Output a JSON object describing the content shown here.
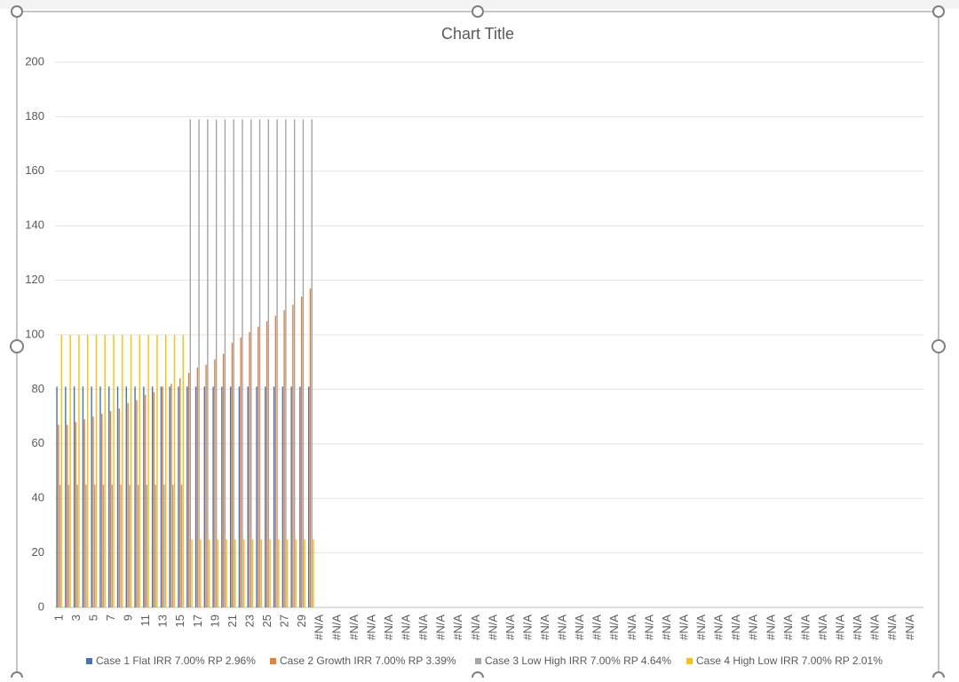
{
  "chart_data": {
    "type": "bar",
    "title": "Chart Title",
    "categories": [
      "1",
      null,
      "3",
      null,
      "5",
      null,
      "7",
      null,
      "9",
      null,
      "11",
      null,
      "13",
      null,
      "15",
      null,
      "17",
      null,
      "19",
      null,
      "21",
      null,
      "23",
      null,
      "25",
      null,
      "27",
      null,
      "29",
      null,
      "#N/A",
      null,
      "#N/A",
      null,
      "#N/A",
      null,
      "#N/A",
      null,
      "#N/A",
      null,
      "#N/A",
      null,
      "#N/A",
      null,
      "#N/A",
      null,
      "#N/A",
      null,
      "#N/A",
      null,
      "#N/A",
      null,
      "#N/A",
      null,
      "#N/A",
      null,
      "#N/A",
      null,
      "#N/A",
      null,
      "#N/A",
      null,
      "#N/A",
      null,
      "#N/A",
      null,
      "#N/A",
      null,
      "#N/A",
      null,
      "#N/A",
      null,
      "#N/A",
      null,
      "#N/A",
      null,
      "#N/A",
      null,
      "#N/A",
      null,
      "#N/A",
      null,
      "#N/A",
      null,
      "#N/A",
      null,
      "#N/A",
      null,
      "#N/A",
      null,
      "#N/A",
      null,
      "#N/A",
      null,
      "#N/A",
      null,
      "#N/A",
      null,
      "#N/A",
      null
    ],
    "series": [
      {
        "name": "Case 1 Flat IRR 7.00% RP 2.96%",
        "color": "#4472c4",
        "values": [
          81,
          81,
          81,
          81,
          81,
          81,
          81,
          81,
          81,
          81,
          81,
          81,
          81,
          81,
          81,
          81,
          81,
          81,
          81,
          81,
          81,
          81,
          81,
          81,
          81,
          81,
          81,
          81,
          81,
          81,
          null,
          null,
          null,
          null,
          null,
          null,
          null,
          null,
          null,
          null,
          null,
          null,
          null,
          null,
          null,
          null,
          null,
          null,
          null,
          null,
          null,
          null,
          null,
          null,
          null,
          null,
          null,
          null,
          null,
          null,
          null,
          null,
          null,
          null,
          null,
          null,
          null,
          null,
          null,
          null,
          null,
          null,
          null,
          null,
          null,
          null,
          null,
          null,
          null,
          null,
          null,
          null,
          null,
          null,
          null,
          null,
          null,
          null,
          null,
          null,
          null,
          null,
          null,
          null,
          null,
          null,
          null,
          null,
          null,
          null
        ]
      },
      {
        "name": "Case 2 Growth IRR 7.00% RP 3.39%",
        "color": "#ed7d31",
        "values": [
          67,
          67,
          68,
          69,
          70,
          71,
          72,
          73,
          75,
          76,
          78,
          79,
          81,
          82,
          84,
          86,
          88,
          89,
          91,
          93,
          97,
          99,
          101,
          103,
          105,
          107,
          109,
          111,
          114,
          117,
          null,
          null,
          null,
          null,
          null,
          null,
          null,
          null,
          null,
          null,
          null,
          null,
          null,
          null,
          null,
          null,
          null,
          null,
          null,
          null,
          null,
          null,
          null,
          null,
          null,
          null,
          null,
          null,
          null,
          null,
          null,
          null,
          null,
          null,
          null,
          null,
          null,
          null,
          null,
          null,
          null,
          null,
          null,
          null,
          null,
          null,
          null,
          null,
          null,
          null,
          null,
          null,
          null,
          null,
          null,
          null,
          null,
          null,
          null,
          null,
          null,
          null,
          null,
          null,
          null,
          null,
          null,
          null,
          null,
          null
        ]
      },
      {
        "name": "Case 3 Low High IRR 7.00% RP 4.64%",
        "color": "#a5a5a5",
        "values": [
          45,
          45,
          45,
          45,
          45,
          45,
          45,
          45,
          45,
          45,
          45,
          45,
          45,
          45,
          45,
          179,
          179,
          179,
          179,
          179,
          179,
          179,
          179,
          179,
          179,
          179,
          179,
          179,
          179,
          179,
          null,
          null,
          null,
          null,
          null,
          null,
          null,
          null,
          null,
          null,
          null,
          null,
          null,
          null,
          null,
          null,
          null,
          null,
          null,
          null,
          null,
          null,
          null,
          null,
          null,
          null,
          null,
          null,
          null,
          null,
          null,
          null,
          null,
          null,
          null,
          null,
          null,
          null,
          null,
          null,
          null,
          null,
          null,
          null,
          null,
          null,
          null,
          null,
          null,
          null,
          null,
          null,
          null,
          null,
          null,
          null,
          null,
          null,
          null,
          null,
          null,
          null,
          null,
          null,
          null,
          null,
          null,
          null,
          null,
          null
        ]
      },
      {
        "name": "Case 4 High Low IRR 7.00% RP 2.01%",
        "color": "#ffc000",
        "values": [
          100,
          100,
          100,
          100,
          100,
          100,
          100,
          100,
          100,
          100,
          100,
          100,
          100,
          100,
          100,
          25,
          25,
          25,
          25,
          25,
          25,
          25,
          25,
          25,
          25,
          25,
          25,
          25,
          25,
          25,
          null,
          null,
          null,
          null,
          null,
          null,
          null,
          null,
          null,
          null,
          null,
          null,
          null,
          null,
          null,
          null,
          null,
          null,
          null,
          null,
          null,
          null,
          null,
          null,
          null,
          null,
          null,
          null,
          null,
          null,
          null,
          null,
          null,
          null,
          null,
          null,
          null,
          null,
          null,
          null,
          null,
          null,
          null,
          null,
          null,
          null,
          null,
          null,
          null,
          null,
          null,
          null,
          null,
          null,
          null,
          null,
          null,
          null,
          null,
          null,
          null,
          null,
          null,
          null,
          null,
          null,
          null,
          null,
          null,
          null
        ]
      }
    ],
    "ylim": [
      0,
      200
    ],
    "yticks": [
      0,
      20,
      40,
      60,
      80,
      100,
      120,
      140,
      160,
      180,
      200
    ],
    "grid": true,
    "legend": "bottom"
  }
}
